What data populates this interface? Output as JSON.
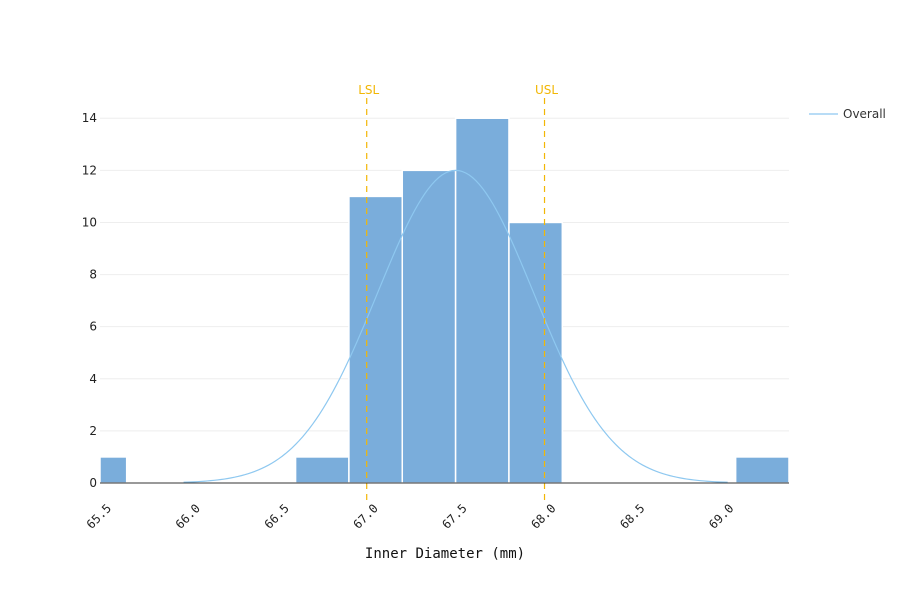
{
  "chart_data": {
    "type": "bar",
    "subtype": "histogram-with-normal-curve",
    "xlabel": "Inner Diameter (mm)",
    "ylabel": "",
    "xlim": [
      65.5,
      69.375
    ],
    "ylim": [
      0,
      14.7
    ],
    "x_ticks": [
      "65.5",
      "66.0",
      "66.5",
      "67.0",
      "67.5",
      "68.0",
      "68.5",
      "69.0"
    ],
    "y_ticks": [
      "0",
      "2",
      "4",
      "6",
      "8",
      "10",
      "12",
      "14"
    ],
    "grid": true,
    "bins": [
      {
        "start": 65.5,
        "end": 65.65,
        "count": 1
      },
      {
        "start": 66.6,
        "end": 66.9,
        "count": 1
      },
      {
        "start": 66.9,
        "end": 67.2,
        "count": 11
      },
      {
        "start": 67.2,
        "end": 67.5,
        "count": 12
      },
      {
        "start": 67.5,
        "end": 67.8,
        "count": 14
      },
      {
        "start": 67.8,
        "end": 68.1,
        "count": 10
      },
      {
        "start": 69.075,
        "end": 69.375,
        "count": 1
      }
    ],
    "series": [
      {
        "name": "Overall",
        "type": "normal-curve",
        "mean": 67.5,
        "sd": 0.44,
        "peak": 12.0,
        "range": [
          65.97,
          69.03
        ]
      }
    ],
    "spec_limits": [
      {
        "label": "LSL",
        "value": 67.0
      },
      {
        "label": "USL",
        "value": 68.0
      }
    ],
    "legend": {
      "position": "top-right"
    },
    "colors": {
      "bar": "#7aaddb",
      "curve": "#8ec8f0",
      "spec": "#f2b705",
      "grid": "#eeeeee",
      "axis": "#333333"
    }
  }
}
